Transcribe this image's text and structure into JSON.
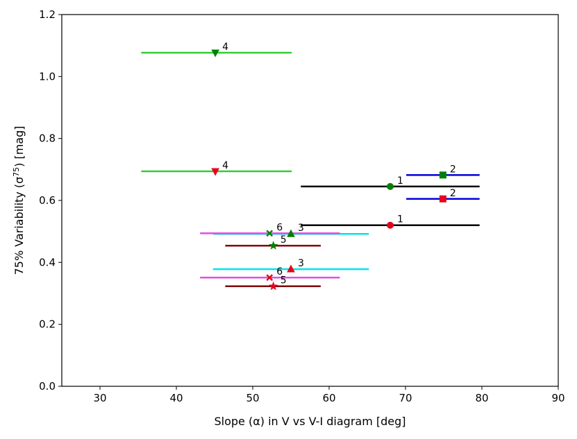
{
  "chart_data": {
    "type": "scatter",
    "title": "",
    "xlabel": "Slope (α) in V vs V-I diagram [deg]",
    "ylabel_main": "75% Variability (σ",
    "ylabel_sup": "75",
    "ylabel_tail": ") [mag]",
    "xlim": [
      25,
      90
    ],
    "ylim": [
      0.0,
      1.2
    ],
    "xticks": [
      30,
      40,
      50,
      60,
      70,
      80,
      90
    ],
    "xtick_labels": [
      "30",
      "40",
      "50",
      "60",
      "70",
      "80",
      "90"
    ],
    "yticks": [
      0.0,
      0.2,
      0.4,
      0.6,
      0.8,
      1.0,
      1.2
    ],
    "ytick_labels": [
      "0.0",
      "0.2",
      "0.4",
      "0.6",
      "0.8",
      "1.0",
      "1.2"
    ],
    "grid": false,
    "points": [
      {
        "label": "1",
        "x": 68.0,
        "y": 0.645,
        "xerr": [
          56.3,
          79.7
        ],
        "marker": "circle",
        "color": "#008000",
        "errcolor": "#000000"
      },
      {
        "label": "1",
        "x": 68.0,
        "y": 0.52,
        "xerr": [
          56.3,
          79.7
        ],
        "marker": "circle",
        "color": "#e8001c",
        "errcolor": "#000000"
      },
      {
        "label": "2",
        "x": 74.9,
        "y": 0.682,
        "xerr": [
          70.1,
          79.7
        ],
        "marker": "square",
        "color": "#008000",
        "errcolor": "#0000dd"
      },
      {
        "label": "2",
        "x": 74.9,
        "y": 0.605,
        "xerr": [
          70.1,
          79.7
        ],
        "marker": "square",
        "color": "#e8001c",
        "errcolor": "#0000dd"
      },
      {
        "label": "3",
        "x": 55.0,
        "y": 0.492,
        "xerr": [
          44.8,
          65.2
        ],
        "marker": "triangle-up",
        "color": "#008000",
        "errcolor": "#00e5e5"
      },
      {
        "label": "3",
        "x": 55.0,
        "y": 0.378,
        "xerr": [
          44.8,
          65.2
        ],
        "marker": "triangle-up",
        "color": "#e8001c",
        "errcolor": "#00e5e5"
      },
      {
        "label": "4",
        "x": 45.1,
        "y": 1.077,
        "xerr": [
          35.4,
          55.1
        ],
        "marker": "triangle-down",
        "color": "#008000",
        "errcolor": "#32cd32"
      },
      {
        "label": "4",
        "x": 45.1,
        "y": 0.694,
        "xerr": [
          35.4,
          55.1
        ],
        "marker": "triangle-down",
        "color": "#e8001c",
        "errcolor": "#32cd32"
      },
      {
        "label": "5",
        "x": 52.7,
        "y": 0.454,
        "xerr": [
          46.4,
          58.9
        ],
        "marker": "star",
        "color": "#008000",
        "errcolor": "#800000"
      },
      {
        "label": "5",
        "x": 52.7,
        "y": 0.323,
        "xerr": [
          46.4,
          58.9
        ],
        "marker": "star",
        "color": "#e8001c",
        "errcolor": "#800000"
      },
      {
        "label": "6",
        "x": 52.2,
        "y": 0.494,
        "xerr": [
          43.1,
          61.4
        ],
        "marker": "x",
        "color": "#008000",
        "errcolor": "#e54ce5"
      },
      {
        "label": "6",
        "x": 52.2,
        "y": 0.351,
        "xerr": [
          43.1,
          61.4
        ],
        "marker": "x",
        "color": "#e8001c",
        "errcolor": "#e54ce5"
      }
    ]
  }
}
